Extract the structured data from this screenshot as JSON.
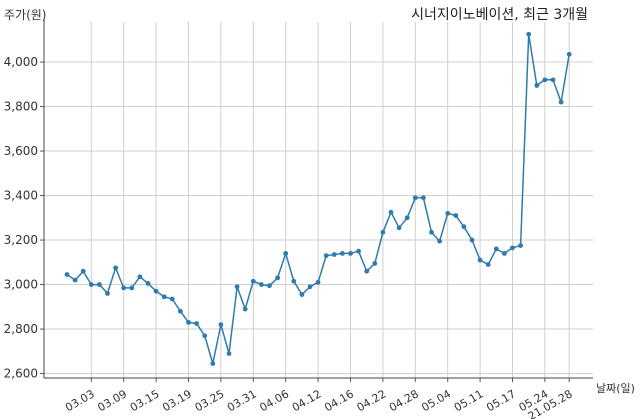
{
  "chart_data": {
    "type": "line",
    "title": "시너지이노베이션, 최근 3개월",
    "ylabel": "주가(원)",
    "xlabel": "날짜(일)",
    "ylim": [
      2580,
      4180
    ],
    "yticks": [
      2600,
      2800,
      3000,
      3200,
      3400,
      3600,
      3800,
      4000
    ],
    "ytick_labels": [
      "2,600",
      "2,800",
      "3,000",
      "3,200",
      "3,400",
      "3,600",
      "3,800",
      "4,000"
    ],
    "xtick_labels": [
      "03.03",
      "03.09",
      "03.15",
      "03.19",
      "03.25",
      "03.31",
      "04.06",
      "04.12",
      "04.16",
      "04.22",
      "04.28",
      "05.04",
      "05.11",
      "05.17",
      "05.24",
      "21.05.28"
    ],
    "xtick_index": [
      3,
      7,
      11,
      15,
      19,
      23,
      27,
      31,
      35,
      39,
      43,
      47,
      51,
      55,
      59,
      62
    ],
    "grid": true,
    "series_color": "#2f7bad",
    "values": [
      3045,
      3020,
      3060,
      3000,
      3000,
      2960,
      3075,
      2985,
      2985,
      3035,
      3005,
      2970,
      2945,
      2935,
      2880,
      2830,
      2825,
      2770,
      2645,
      2820,
      2690,
      2990,
      2890,
      3015,
      3000,
      2995,
      3030,
      3140,
      3015,
      2955,
      2990,
      3010,
      3130,
      3135,
      3140,
      3140,
      3150,
      3060,
      3095,
      3235,
      3325,
      3255,
      3300,
      3390,
      3390,
      3235,
      3195,
      3320,
      3310,
      3260,
      3200,
      3110,
      3090,
      3160,
      3140,
      3165,
      3175,
      4125,
      3895,
      3920,
      3920,
      3820,
      4035
    ]
  }
}
